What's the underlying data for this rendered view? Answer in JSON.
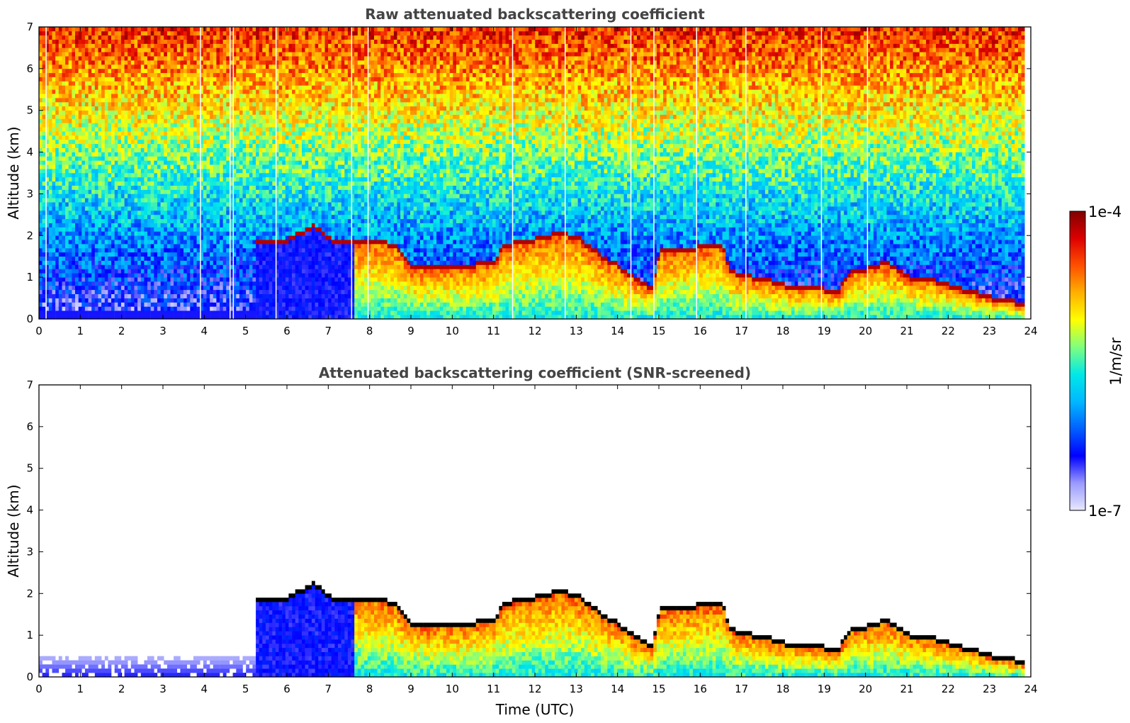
{
  "colors": {
    "colormap": [
      "#e8e8ff",
      "#9a9aff",
      "#0000ff",
      "#0060ff",
      "#00b8ff",
      "#00e8e8",
      "#7fff7f",
      "#ffff00",
      "#ffb000",
      "#ff5000",
      "#dd0000",
      "#800000"
    ],
    "background": "#ffffff",
    "title_color": "#444444"
  },
  "chart_data": [
    {
      "type": "heatmap",
      "title": "Raw attenuated backscattering coefficient",
      "xlabel": "",
      "ylabel": "Altitude (km)",
      "xlim": [
        0,
        24
      ],
      "ylim": [
        0,
        7
      ],
      "xticks": [
        "0",
        "1",
        "2",
        "3",
        "4",
        "5",
        "6",
        "7",
        "8",
        "9",
        "10",
        "11",
        "12",
        "13",
        "14",
        "15",
        "16",
        "17",
        "18",
        "19",
        "20",
        "21",
        "22",
        "23",
        "24"
      ],
      "yticks": [
        "0",
        "1",
        "2",
        "3",
        "4",
        "5",
        "6",
        "7"
      ],
      "data_end_hour": 23.85,
      "screened": false,
      "layer_top_km": [
        [
          5.2,
          1.75
        ],
        [
          6.0,
          1.85
        ],
        [
          6.3,
          2.0
        ],
        [
          6.6,
          2.2
        ],
        [
          7.0,
          1.85
        ],
        [
          7.5,
          1.8
        ],
        [
          8.0,
          1.85
        ],
        [
          8.6,
          1.7
        ],
        [
          9.0,
          1.15
        ],
        [
          9.5,
          1.2
        ],
        [
          10.0,
          1.2
        ],
        [
          10.5,
          1.25
        ],
        [
          11.0,
          1.3
        ],
        [
          11.2,
          1.7
        ],
        [
          11.6,
          1.8
        ],
        [
          12.0,
          1.85
        ],
        [
          12.5,
          2.0
        ],
        [
          13.0,
          1.9
        ],
        [
          13.5,
          1.5
        ],
        [
          14.0,
          1.2
        ],
        [
          14.4,
          0.9
        ],
        [
          14.8,
          0.7
        ],
        [
          15.0,
          1.6
        ],
        [
          15.5,
          1.55
        ],
        [
          16.0,
          1.7
        ],
        [
          16.5,
          1.65
        ],
        [
          16.7,
          1.1
        ],
        [
          17.0,
          1.0
        ],
        [
          17.5,
          0.9
        ],
        [
          18.0,
          0.75
        ],
        [
          18.5,
          0.7
        ],
        [
          19.0,
          0.65
        ],
        [
          19.3,
          0.6
        ],
        [
          19.6,
          1.1
        ],
        [
          20.0,
          1.15
        ],
        [
          20.5,
          1.3
        ],
        [
          21.0,
          0.95
        ],
        [
          21.5,
          0.9
        ],
        [
          22.0,
          0.75
        ],
        [
          22.5,
          0.6
        ],
        [
          23.0,
          0.45
        ],
        [
          23.8,
          0.3
        ]
      ]
    },
    {
      "type": "heatmap",
      "title": "Attenuated backscattering coefficient (SNR-screened)",
      "xlabel": "Time (UTC)",
      "ylabel": "Altitude (km)",
      "xlim": [
        0,
        24
      ],
      "ylim": [
        0,
        7
      ],
      "xticks": [
        "0",
        "1",
        "2",
        "3",
        "4",
        "5",
        "6",
        "7",
        "8",
        "9",
        "10",
        "11",
        "12",
        "13",
        "14",
        "15",
        "16",
        "17",
        "18",
        "19",
        "20",
        "21",
        "22",
        "23",
        "24"
      ],
      "yticks": [
        "0",
        "1",
        "2",
        "3",
        "4",
        "5",
        "6",
        "7"
      ],
      "data_end_hour": 23.85,
      "screened": true,
      "layer_top_km": [
        [
          5.2,
          1.75
        ],
        [
          6.0,
          1.85
        ],
        [
          6.3,
          2.0
        ],
        [
          6.6,
          2.2
        ],
        [
          7.0,
          1.85
        ],
        [
          7.5,
          1.8
        ],
        [
          8.0,
          1.85
        ],
        [
          8.6,
          1.7
        ],
        [
          9.0,
          1.15
        ],
        [
          9.5,
          1.2
        ],
        [
          10.0,
          1.2
        ],
        [
          10.5,
          1.25
        ],
        [
          11.0,
          1.3
        ],
        [
          11.2,
          1.7
        ],
        [
          11.6,
          1.8
        ],
        [
          12.0,
          1.85
        ],
        [
          12.5,
          2.0
        ],
        [
          13.0,
          1.9
        ],
        [
          13.5,
          1.5
        ],
        [
          14.0,
          1.2
        ],
        [
          14.4,
          0.9
        ],
        [
          14.8,
          0.7
        ],
        [
          15.0,
          1.6
        ],
        [
          15.5,
          1.55
        ],
        [
          16.0,
          1.7
        ],
        [
          16.5,
          1.65
        ],
        [
          16.7,
          1.1
        ],
        [
          17.0,
          1.0
        ],
        [
          17.5,
          0.9
        ],
        [
          18.0,
          0.75
        ],
        [
          18.5,
          0.7
        ],
        [
          19.0,
          0.65
        ],
        [
          19.3,
          0.6
        ],
        [
          19.6,
          1.1
        ],
        [
          20.0,
          1.15
        ],
        [
          20.5,
          1.3
        ],
        [
          21.0,
          0.95
        ],
        [
          21.5,
          0.9
        ],
        [
          22.0,
          0.75
        ],
        [
          22.5,
          0.6
        ],
        [
          23.0,
          0.45
        ],
        [
          23.8,
          0.3
        ]
      ]
    }
  ],
  "colorbar": {
    "label": "1/m/sr",
    "max_label": "1e-4",
    "min_label": "1e-7"
  }
}
